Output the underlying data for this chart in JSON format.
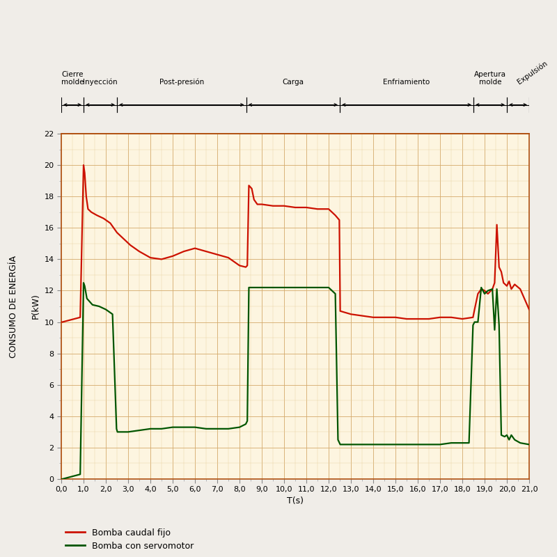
{
  "xlabel": "T(s)",
  "ylabel": "CONSUMO DE ENERGÍA",
  "ylabel2": "P(kW)",
  "xlim": [
    0,
    21.0
  ],
  "ylim": [
    0,
    22
  ],
  "xticks": [
    0.0,
    1.0,
    2.0,
    3.0,
    4.0,
    5.0,
    6.0,
    7.0,
    8.0,
    9.0,
    10.0,
    11.0,
    12.0,
    13.0,
    14.0,
    15.0,
    16.0,
    17.0,
    18.0,
    19.0,
    20.0,
    21.0
  ],
  "yticks": [
    0,
    2,
    4,
    6,
    8,
    10,
    12,
    14,
    16,
    18,
    20,
    22
  ],
  "background_color": "#fdf5e0",
  "grid_color_major": "#d4a96a",
  "grid_color_minor": "#e8d0a0",
  "border_color": "#b05010",
  "fig_bg": "#f0ede8",
  "legend1": "Bomba caudal fijo",
  "legend2": "Bomba con servomotor",
  "color_red": "#cc1100",
  "color_green": "#005500",
  "phases": [
    {
      "label": "Cierre\nmolde",
      "x_start": 0.0,
      "x_end": 1.0
    },
    {
      "label": "Inyección",
      "x_start": 1.0,
      "x_end": 2.5
    },
    {
      "label": "Post-presión",
      "x_start": 2.5,
      "x_end": 8.3
    },
    {
      "label": "Carga",
      "x_start": 8.3,
      "x_end": 12.5
    },
    {
      "label": "Enfriamiento",
      "x_start": 12.5,
      "x_end": 18.5
    },
    {
      "label": "Apertura\nmolde",
      "x_start": 18.5,
      "x_end": 20.0
    },
    {
      "label": "Expulsión",
      "x_start": 20.0,
      "x_end": 21.0
    }
  ],
  "red_x": [
    0.0,
    0.05,
    0.85,
    1.0,
    1.05,
    1.12,
    1.2,
    1.35,
    1.6,
    1.9,
    2.2,
    2.5,
    2.8,
    3.1,
    3.5,
    4.0,
    4.5,
    5.0,
    5.5,
    6.0,
    6.5,
    7.0,
    7.5,
    8.0,
    8.28,
    8.35,
    8.42,
    8.55,
    8.65,
    8.8,
    9.0,
    9.5,
    10.0,
    10.5,
    11.0,
    11.5,
    12.0,
    12.3,
    12.48,
    12.52,
    13.0,
    13.5,
    14.0,
    14.5,
    15.0,
    15.5,
    16.0,
    16.5,
    17.0,
    17.5,
    18.0,
    18.48,
    18.55,
    18.7,
    18.85,
    19.0,
    19.15,
    19.35,
    19.45,
    19.55,
    19.65,
    19.75,
    19.85,
    20.0,
    20.1,
    20.2,
    20.35,
    20.6,
    21.0
  ],
  "red_y": [
    10.0,
    10.0,
    10.3,
    20.0,
    19.5,
    18.0,
    17.2,
    17.0,
    16.8,
    16.6,
    16.3,
    15.7,
    15.3,
    14.9,
    14.5,
    14.1,
    14.0,
    14.2,
    14.5,
    14.7,
    14.5,
    14.3,
    14.1,
    13.6,
    13.5,
    13.6,
    18.7,
    18.5,
    17.8,
    17.5,
    17.5,
    17.4,
    17.4,
    17.3,
    17.3,
    17.2,
    17.2,
    16.8,
    16.5,
    10.7,
    10.5,
    10.4,
    10.3,
    10.3,
    10.3,
    10.2,
    10.2,
    10.2,
    10.3,
    10.3,
    10.2,
    10.3,
    10.8,
    11.8,
    12.1,
    12.0,
    11.8,
    12.1,
    12.5,
    16.2,
    13.5,
    13.2,
    12.5,
    12.3,
    12.6,
    12.1,
    12.4,
    12.1,
    10.8
  ],
  "green_x": [
    0.0,
    0.05,
    0.85,
    1.0,
    1.05,
    1.15,
    1.4,
    1.7,
    2.0,
    2.3,
    2.48,
    2.52,
    2.7,
    3.0,
    3.5,
    4.0,
    4.5,
    5.0,
    5.5,
    6.0,
    6.5,
    7.0,
    7.5,
    8.0,
    8.28,
    8.35,
    8.42,
    8.55,
    9.0,
    9.5,
    10.0,
    10.5,
    11.0,
    11.5,
    12.0,
    12.3,
    12.42,
    12.52,
    13.0,
    13.5,
    14.0,
    14.5,
    15.0,
    15.5,
    16.0,
    16.5,
    17.0,
    17.5,
    18.0,
    18.3,
    18.48,
    18.55,
    18.7,
    18.85,
    19.0,
    19.15,
    19.35,
    19.45,
    19.55,
    19.65,
    19.75,
    19.9,
    20.0,
    20.1,
    20.2,
    20.35,
    20.6,
    21.0
  ],
  "green_y": [
    0.0,
    0.0,
    0.3,
    12.5,
    12.3,
    11.5,
    11.1,
    11.0,
    10.8,
    10.5,
    3.2,
    3.0,
    3.0,
    3.0,
    3.1,
    3.2,
    3.2,
    3.3,
    3.3,
    3.3,
    3.2,
    3.2,
    3.2,
    3.3,
    3.5,
    3.7,
    12.2,
    12.2,
    12.2,
    12.2,
    12.2,
    12.2,
    12.2,
    12.2,
    12.2,
    11.8,
    2.5,
    2.2,
    2.2,
    2.2,
    2.2,
    2.2,
    2.2,
    2.2,
    2.2,
    2.2,
    2.2,
    2.3,
    2.3,
    2.3,
    9.8,
    10.0,
    10.0,
    12.2,
    11.8,
    12.0,
    12.1,
    9.5,
    12.1,
    9.8,
    2.8,
    2.7,
    2.8,
    2.5,
    2.8,
    2.5,
    2.3,
    2.2
  ]
}
